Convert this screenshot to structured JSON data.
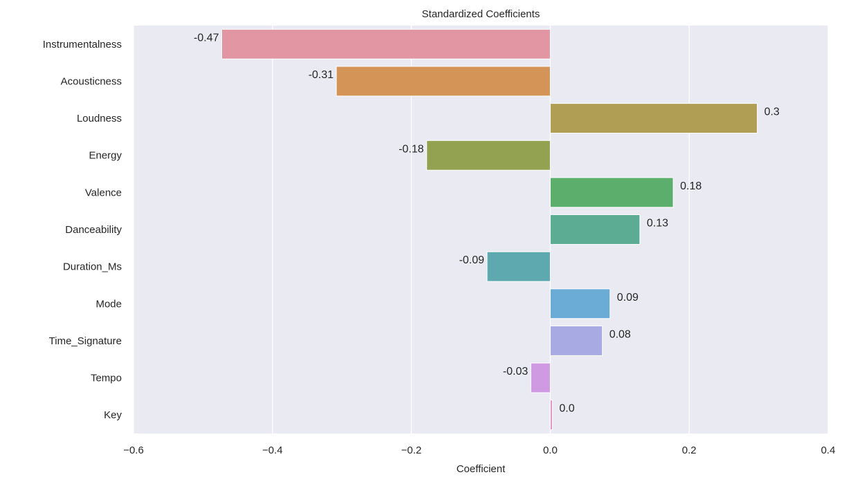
{
  "chart_data": {
    "type": "bar",
    "orientation": "horizontal",
    "title": "Standardized Coefficients",
    "xlabel": "Coefficient",
    "ylabel": "",
    "xlim": [
      -0.6,
      0.4
    ],
    "xticks": [
      -0.6,
      -0.4,
      -0.2,
      0.0,
      0.2,
      0.4
    ],
    "xtick_labels": [
      "−0.6",
      "−0.4",
      "−0.2",
      "0.0",
      "0.2",
      "0.4"
    ],
    "grid": true,
    "categories": [
      "Instrumentalness",
      "Acousticness",
      "Loudness",
      "Energy",
      "Valence",
      "Danceability",
      "Duration_Ms",
      "Mode",
      "Time_Signature",
      "Tempo",
      "Key"
    ],
    "values": [
      -0.473,
      -0.308,
      0.298,
      -0.178,
      0.177,
      0.129,
      -0.091,
      0.086,
      0.075,
      -0.028,
      0.003
    ],
    "data_labels": [
      "-0.47",
      "-0.31",
      "0.3",
      "-0.18",
      "0.18",
      "0.13",
      "-0.09",
      "0.09",
      "0.08",
      "-0.03",
      "0.0"
    ],
    "colors": [
      "#e295a3",
      "#d49458",
      "#b19e55",
      "#93a250",
      "#5bae6b",
      "#5cab93",
      "#5ea8b0",
      "#6aacd5",
      "#a8aae3",
      "#d09ae3",
      "#e190c9"
    ],
    "background": "#eaeaf2",
    "gridline_color": "#ffffff"
  }
}
